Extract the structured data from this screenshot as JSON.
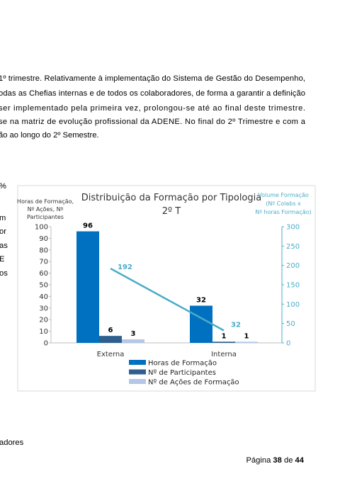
{
  "body_text": [
    "1º trimestre. Relativamente à implementação do Sistema de Gestão do Desempenho,",
    "odas as Chefias internas e de todos os colaboradores, de forma a garantir a definição",
    "ser implementado pela primeira vez, prolongou-se até ao final deste trimestre.",
    "se na matriz de evolução profissional da ADENE. No final do 2º Trimestre e com a",
    "ão ao longo do 2º Semestre."
  ],
  "side_text": [
    "%",
    "m",
    "or",
    "as",
    "E",
    "os"
  ],
  "bottom_text": "adores",
  "footer": {
    "page_word": "Página",
    "page": "38",
    "of_word": "de",
    "total": "44"
  },
  "chart_data": {
    "type": "bar",
    "title": "Distribuição da Formação por Tipologia",
    "subtitle": "2º T",
    "ylabel": [
      "Horas de Formação,",
      "Nº Ações, Nº",
      "Participantes"
    ],
    "y2label": [
      "Volume Formação",
      "(Nº Colabs x",
      "Nº horas Formação)"
    ],
    "categories": [
      "Externa",
      "Interna"
    ],
    "ylim": [
      0,
      100
    ],
    "yticks": [
      0,
      10,
      20,
      30,
      40,
      50,
      60,
      70,
      80,
      90,
      100
    ],
    "y2lim": [
      0,
      300
    ],
    "y2ticks": [
      0,
      50,
      100,
      150,
      200,
      250,
      300
    ],
    "series": [
      {
        "name": "Horas de Formação",
        "color": "#0070c0",
        "values": [
          96,
          32
        ]
      },
      {
        "name": "Nº de Participantes",
        "color": "#2f5f8f",
        "values": [
          6,
          1
        ]
      },
      {
        "name": "Nº de Ações de Formação",
        "color": "#b4c7e7",
        "values": [
          3,
          1
        ]
      },
      {
        "type": "line",
        "axis": "y2",
        "color": "#4bacc6",
        "values": [
          192,
          32
        ]
      }
    ]
  }
}
